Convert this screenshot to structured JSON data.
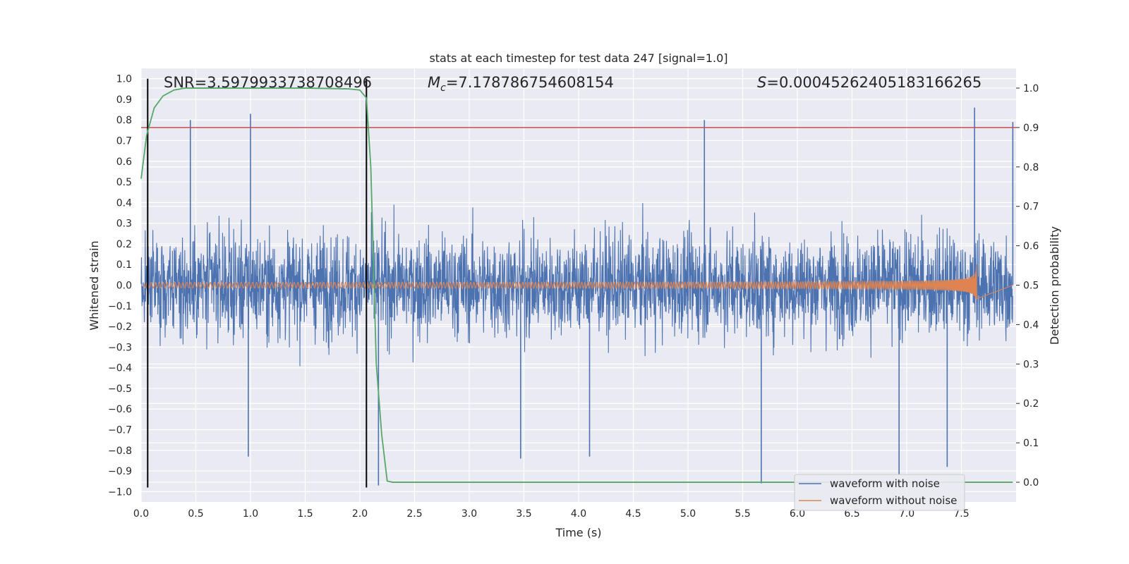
{
  "chart_data": {
    "type": "line",
    "title": "stats at each timestep for test data 247 [signal=1.0]",
    "xlabel": "Time (s)",
    "ylabel": "Whitened strain",
    "y2label": "Detection probability",
    "xlim": [
      0.0,
      8.0
    ],
    "ylim": [
      -1.05,
      1.05
    ],
    "y2lim": [
      -0.05,
      1.05
    ],
    "x_ticks": [
      0.0,
      0.5,
      1.0,
      1.5,
      2.0,
      2.5,
      3.0,
      3.5,
      4.0,
      4.5,
      5.0,
      5.5,
      6.0,
      6.5,
      7.0,
      7.5
    ],
    "x_tick_labels": [
      "0.0",
      "0.5",
      "1.0",
      "1.5",
      "2.0",
      "2.5",
      "3.0",
      "3.5",
      "4.0",
      "4.5",
      "5.0",
      "5.5",
      "6.0",
      "6.5",
      "7.0",
      "7.5"
    ],
    "y_ticks": [
      1.0,
      0.9,
      0.8,
      0.7,
      0.6,
      0.5,
      0.4,
      0.3,
      0.2,
      0.1,
      0.0,
      -0.1,
      -0.2,
      -0.3,
      -0.4,
      -0.5,
      -0.6,
      -0.7,
      -0.8,
      -0.9,
      -1.0
    ],
    "y_tick_labels": [
      "1.0",
      "0.9",
      "0.8",
      "0.7",
      "0.6",
      "0.5",
      "0.4",
      "0.3",
      "0.2",
      "0.1",
      "0.0",
      "−0.1",
      "−0.2",
      "−0.3",
      "−0.4",
      "−0.5",
      "−0.6",
      "−0.7",
      "−0.8",
      "−0.9",
      "−1.0"
    ],
    "y2_ticks": [
      1.0,
      0.9,
      0.8,
      0.7,
      0.6,
      0.5,
      0.4,
      0.3,
      0.2,
      0.1,
      0.0
    ],
    "y2_tick_labels": [
      "1.0",
      "0.9",
      "0.8",
      "0.7",
      "0.6",
      "0.5",
      "0.4",
      "0.3",
      "0.2",
      "0.1",
      "0.0"
    ],
    "annotations": {
      "snr": "SNR=3.5979933738708496",
      "mc_symbol": "M",
      "mc_sub": "c",
      "mc_value": "=7.178786754608154",
      "s_symbol": "S",
      "s_value": "=0.00045262405183166265"
    },
    "legend": {
      "placement": "lower-right",
      "entries": [
        "waveform with noise",
        "waveform without noise"
      ]
    },
    "series": [
      {
        "name": "waveform with noise",
        "color": "#4c72b0",
        "axis": "left",
        "description": "whitened noisy strain, roughly within -0.5..0.5 with spikes to about ±0.85",
        "noise_envelope": 0.5,
        "spike_peaks": [
          {
            "x": 0.45,
            "y": 0.8
          },
          {
            "x": 1.0,
            "y": 0.83
          },
          {
            "x": 0.98,
            "y": -0.83
          },
          {
            "x": 2.17,
            "y": -0.97
          },
          {
            "x": 3.47,
            "y": -0.84
          },
          {
            "x": 4.1,
            "y": -0.83
          },
          {
            "x": 5.15,
            "y": 0.8
          },
          {
            "x": 5.67,
            "y": -0.96
          },
          {
            "x": 6.93,
            "y": -0.92
          },
          {
            "x": 7.37,
            "y": -0.88
          },
          {
            "x": 7.62,
            "y": 0.86
          },
          {
            "x": 7.97,
            "y": 0.79
          }
        ]
      },
      {
        "name": "waveform without noise",
        "color": "#dd8452",
        "axis": "left",
        "description": "chirp signal, amplitude growing to about 0.12 near merger at t=7.64 s",
        "merger_time": 7.64,
        "start_amplitude": 0.01,
        "peak_amplitude": 0.12
      },
      {
        "name": "detection probability",
        "color": "#55a868",
        "axis": "right",
        "x": [
          0.0,
          0.05,
          0.12,
          0.2,
          0.3,
          0.4,
          0.6,
          1.0,
          1.5,
          1.9,
          2.0,
          2.06,
          2.1,
          2.13,
          2.15,
          2.2,
          2.25,
          2.3,
          7.97
        ],
        "y": [
          0.77,
          0.88,
          0.95,
          0.98,
          0.995,
          1.0,
          1.0,
          1.0,
          1.0,
          0.998,
          0.995,
          0.975,
          0.8,
          0.5,
          0.3,
          0.12,
          0.003,
          0.0,
          0.0
        ]
      }
    ],
    "reference_lines": [
      {
        "name": "threshold",
        "axis": "right",
        "orientation": "horizontal",
        "value": 0.9,
        "color": "#c44e52"
      },
      {
        "name": "detection-start",
        "axis": "left",
        "orientation": "vertical",
        "value": 0.06,
        "y_range": [
          -0.98,
          1.0
        ],
        "color": "#000000"
      },
      {
        "name": "detection-end",
        "axis": "left",
        "orientation": "vertical",
        "value": 2.06,
        "y_range": [
          -0.98,
          1.0
        ],
        "color": "#000000"
      }
    ],
    "grid": true
  }
}
